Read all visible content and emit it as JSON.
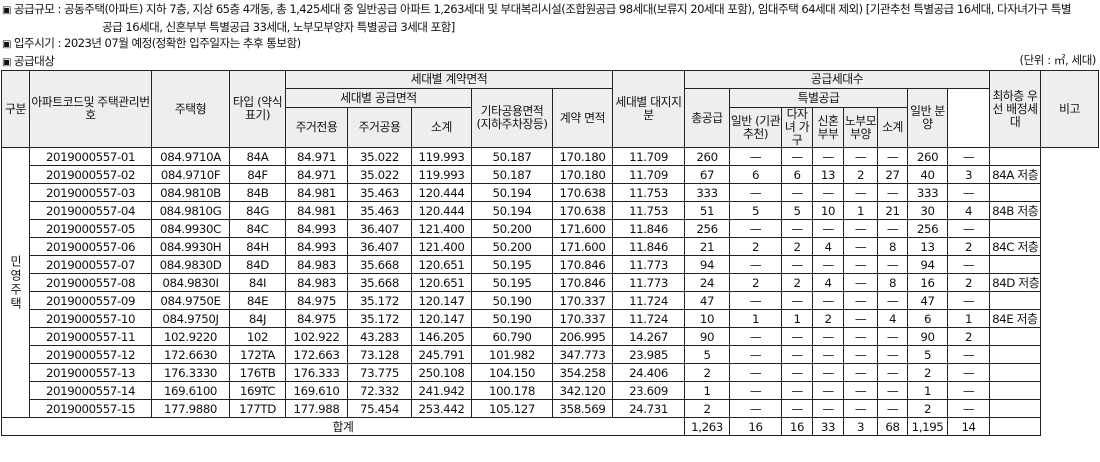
{
  "intro": {
    "line1": "공급규모 : 공동주택(아파트) 지하 7층, 지상 65층 4개동, 총 1,425세대 중 일반공급 아파트 1,263세대 및 부대복리시설(조합원공급 98세대(보류지 20세대 포함), 임대주택 64세대 제외) [기관추천 특별공급 16세대, 다자녀가구 특별",
    "line1b": "공급 16세대, 신혼부부 특별공급 33세대, 노부모부양자 특별공급 3세대 포함]",
    "line2": "입주시기 : 2023년 07월 예정(정확한 입주일자는 추후 통보함)",
    "line3": "공급대상",
    "unit": "(단위 : ㎡, 세대)"
  },
  "table": {
    "headers": {
      "gubun": "구분",
      "apt_code": "아파트코드및 주택관리번호",
      "housing_type": "주택형",
      "type_label": "타입 (약식표기)",
      "contract_area": "세대별 계약면적",
      "supply_area": "세대별 공급면적",
      "private": "주거전용",
      "common": "주거공용",
      "subtotal": "소계",
      "other_common": "기타공용면적 (지하주차장등)",
      "contract": "계약 면적",
      "land_share": "세대별 대지지분",
      "supply_units": "공급세대수",
      "total_supply": "총공급",
      "special": "특별공급",
      "inst": "일반 (기관추천)",
      "multi": "다자녀 가구",
      "newlywed": "신혼 부부",
      "elderly": "노부모 부양",
      "special_subtotal": "소계",
      "general": "일반 분양",
      "lowest_floor": "최하층 우선 배정세대",
      "remarks": "비고"
    },
    "category": "민영주택",
    "rows": [
      {
        "code": "2019000557-01",
        "type": "084.9710A",
        "label": "84A",
        "private": "84.971",
        "common": "35.022",
        "subtotal": "119.993",
        "other": "50.187",
        "contract": "170.180",
        "land": "11.709",
        "total": "260",
        "inst": "—",
        "multi": "—",
        "newlywed": "—",
        "elderly": "—",
        "ssub": "—",
        "general": "260",
        "lowest": "—",
        "note": ""
      },
      {
        "code": "2019000557-02",
        "type": "084.9710F",
        "label": "84F",
        "private": "84.971",
        "common": "35.022",
        "subtotal": "119.993",
        "other": "50.187",
        "contract": "170.180",
        "land": "11.709",
        "total": "67",
        "inst": "6",
        "multi": "6",
        "newlywed": "13",
        "elderly": "2",
        "ssub": "27",
        "general": "40",
        "lowest": "3",
        "note": "84A 저층"
      },
      {
        "code": "2019000557-03",
        "type": "084.9810B",
        "label": "84B",
        "private": "84.981",
        "common": "35.463",
        "subtotal": "120.444",
        "other": "50.194",
        "contract": "170.638",
        "land": "11.753",
        "total": "333",
        "inst": "—",
        "multi": "—",
        "newlywed": "—",
        "elderly": "—",
        "ssub": "—",
        "general": "333",
        "lowest": "—",
        "note": ""
      },
      {
        "code": "2019000557-04",
        "type": "084.9810G",
        "label": "84G",
        "private": "84.981",
        "common": "35.463",
        "subtotal": "120.444",
        "other": "50.194",
        "contract": "170.638",
        "land": "11.753",
        "total": "51",
        "inst": "5",
        "multi": "5",
        "newlywed": "10",
        "elderly": "1",
        "ssub": "21",
        "general": "30",
        "lowest": "4",
        "note": "84B 저층"
      },
      {
        "code": "2019000557-05",
        "type": "084.9930C",
        "label": "84C",
        "private": "84.993",
        "common": "36.407",
        "subtotal": "121.400",
        "other": "50.200",
        "contract": "171.600",
        "land": "11.846",
        "total": "256",
        "inst": "—",
        "multi": "—",
        "newlywed": "—",
        "elderly": "—",
        "ssub": "—",
        "general": "256",
        "lowest": "—",
        "note": ""
      },
      {
        "code": "2019000557-06",
        "type": "084.9930H",
        "label": "84H",
        "private": "84.993",
        "common": "36.407",
        "subtotal": "121.400",
        "other": "50.200",
        "contract": "171.600",
        "land": "11.846",
        "total": "21",
        "inst": "2",
        "multi": "2",
        "newlywed": "4",
        "elderly": "—",
        "ssub": "8",
        "general": "13",
        "lowest": "2",
        "note": "84C 저층"
      },
      {
        "code": "2019000557-07",
        "type": "084.9830D",
        "label": "84D",
        "private": "84.983",
        "common": "35.668",
        "subtotal": "120.651",
        "other": "50.195",
        "contract": "170.846",
        "land": "11.773",
        "total": "94",
        "inst": "—",
        "multi": "—",
        "newlywed": "—",
        "elderly": "—",
        "ssub": "—",
        "general": "94",
        "lowest": "—",
        "note": ""
      },
      {
        "code": "2019000557-08",
        "type": "084.9830I",
        "label": "84I",
        "private": "84.983",
        "common": "35.668",
        "subtotal": "120.651",
        "other": "50.195",
        "contract": "170.846",
        "land": "11.773",
        "total": "24",
        "inst": "2",
        "multi": "2",
        "newlywed": "4",
        "elderly": "—",
        "ssub": "8",
        "general": "16",
        "lowest": "2",
        "note": "84D 저층"
      },
      {
        "code": "2019000557-09",
        "type": "084.9750E",
        "label": "84E",
        "private": "84.975",
        "common": "35.172",
        "subtotal": "120.147",
        "other": "50.190",
        "contract": "170.337",
        "land": "11.724",
        "total": "47",
        "inst": "—",
        "multi": "—",
        "newlywed": "—",
        "elderly": "—",
        "ssub": "—",
        "general": "47",
        "lowest": "—",
        "note": ""
      },
      {
        "code": "2019000557-10",
        "type": "084.9750J",
        "label": "84J",
        "private": "84.975",
        "common": "35.172",
        "subtotal": "120.147",
        "other": "50.190",
        "contract": "170.337",
        "land": "11.724",
        "total": "10",
        "inst": "1",
        "multi": "1",
        "newlywed": "2",
        "elderly": "—",
        "ssub": "4",
        "general": "6",
        "lowest": "1",
        "note": "84E 저층"
      },
      {
        "code": "2019000557-11",
        "type": "102.9220",
        "label": "102",
        "private": "102.922",
        "common": "43.283",
        "subtotal": "146.205",
        "other": "60.790",
        "contract": "206.995",
        "land": "14.267",
        "total": "90",
        "inst": "—",
        "multi": "—",
        "newlywed": "—",
        "elderly": "—",
        "ssub": "—",
        "general": "90",
        "lowest": "2",
        "note": ""
      },
      {
        "code": "2019000557-12",
        "type": "172.6630",
        "label": "172TA",
        "private": "172.663",
        "common": "73.128",
        "subtotal": "245.791",
        "other": "101.982",
        "contract": "347.773",
        "land": "23.985",
        "total": "5",
        "inst": "—",
        "multi": "—",
        "newlywed": "—",
        "elderly": "—",
        "ssub": "—",
        "general": "5",
        "lowest": "—",
        "note": ""
      },
      {
        "code": "2019000557-13",
        "type": "176.3330",
        "label": "176TB",
        "private": "176.333",
        "common": "73.775",
        "subtotal": "250.108",
        "other": "104.150",
        "contract": "354.258",
        "land": "24.406",
        "total": "2",
        "inst": "—",
        "multi": "—",
        "newlywed": "—",
        "elderly": "—",
        "ssub": "—",
        "general": "2",
        "lowest": "—",
        "note": ""
      },
      {
        "code": "2019000557-14",
        "type": "169.6100",
        "label": "169TC",
        "private": "169.610",
        "common": "72.332",
        "subtotal": "241.942",
        "other": "100.178",
        "contract": "342.120",
        "land": "23.609",
        "total": "1",
        "inst": "—",
        "multi": "—",
        "newlywed": "—",
        "elderly": "—",
        "ssub": "—",
        "general": "1",
        "lowest": "—",
        "note": ""
      },
      {
        "code": "2019000557-15",
        "type": "177.9880",
        "label": "177TD",
        "private": "177.988",
        "common": "75.454",
        "subtotal": "253.442",
        "other": "105.127",
        "contract": "358.569",
        "land": "24.731",
        "total": "2",
        "inst": "—",
        "multi": "—",
        "newlywed": "—",
        "elderly": "—",
        "ssub": "—",
        "general": "2",
        "lowest": "—",
        "note": ""
      }
    ],
    "total": {
      "label": "합계",
      "total": "1,263",
      "inst": "16",
      "multi": "16",
      "newlywed": "33",
      "elderly": "3",
      "ssub": "68",
      "general": "1,195",
      "lowest": "14"
    }
  }
}
